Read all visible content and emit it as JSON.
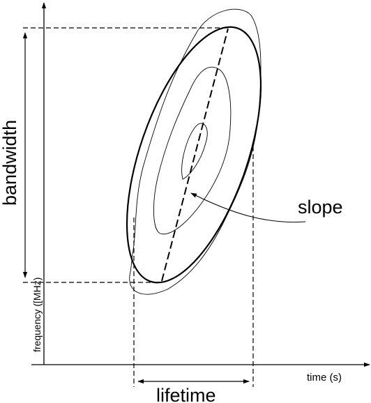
{
  "labels": {
    "time_axis": "time (s)",
    "frequency_axis": "frequency ([MHz)",
    "bandwidth": "bandwidth",
    "lifetime": "lifetime",
    "slope": "slope"
  }
}
